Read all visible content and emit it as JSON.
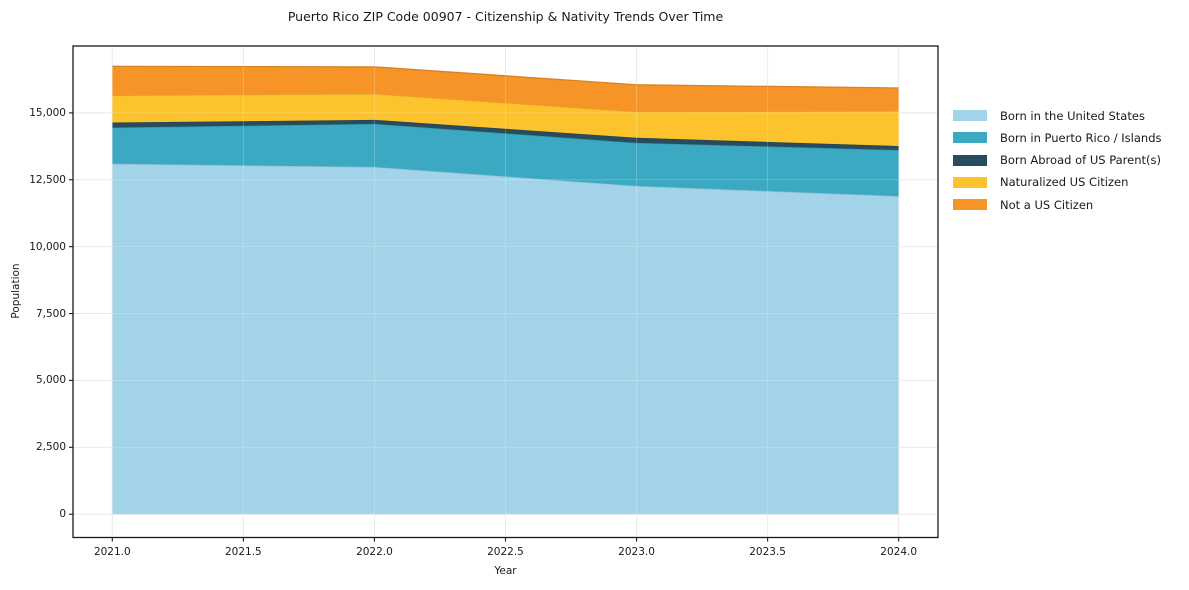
{
  "chart_data": {
    "type": "area",
    "stacked": true,
    "title": "Puerto Rico ZIP Code 00907 - Citizenship & Nativity Trends Over Time",
    "xlabel": "Year",
    "ylabel": "Population",
    "x": [
      2021,
      2022,
      2023,
      2024
    ],
    "series": [
      {
        "name": "Born in the United States",
        "color": "#a2d3e8",
        "values": [
          13100,
          12980,
          12270,
          11890
        ]
      },
      {
        "name": "Born in Puerto Rico / Islands",
        "color": "#3aa9c1",
        "values": [
          1350,
          1610,
          1610,
          1720
        ]
      },
      {
        "name": "Born Abroad of US Parent(s)",
        "color": "#264c5e",
        "values": [
          190,
          150,
          190,
          150
        ]
      },
      {
        "name": "Naturalized US Citizen",
        "color": "#fcc32d",
        "values": [
          1010,
          970,
          970,
          1310
        ]
      },
      {
        "name": "Not a US Citizen",
        "color": "#f79428",
        "values": [
          1090,
          1010,
          1010,
          860
        ]
      }
    ],
    "xtick_values": [
      2021.0,
      2021.5,
      2022.0,
      2022.5,
      2023.0,
      2023.5,
      2024.0
    ],
    "xtick_labels": [
      "2021.0",
      "2021.5",
      "2022.0",
      "2022.5",
      "2023.0",
      "2023.5",
      "2024.0"
    ],
    "ytick_values": [
      0,
      2500,
      5000,
      7500,
      10000,
      12500,
      15000
    ],
    "ytick_labels": [
      "0",
      "2,500",
      "5,000",
      "7,500",
      "10,000",
      "12,500",
      "15,000"
    ],
    "xlim": [
      2020.85,
      2024.15
    ],
    "ylim": [
      -870,
      17500
    ],
    "grid": true,
    "legend_position": "right-outside"
  },
  "colors": {
    "background": "#ffffff",
    "spine": "#1a1a1a",
    "grid": "#e4e4e4",
    "text": "#1a1a1a"
  }
}
